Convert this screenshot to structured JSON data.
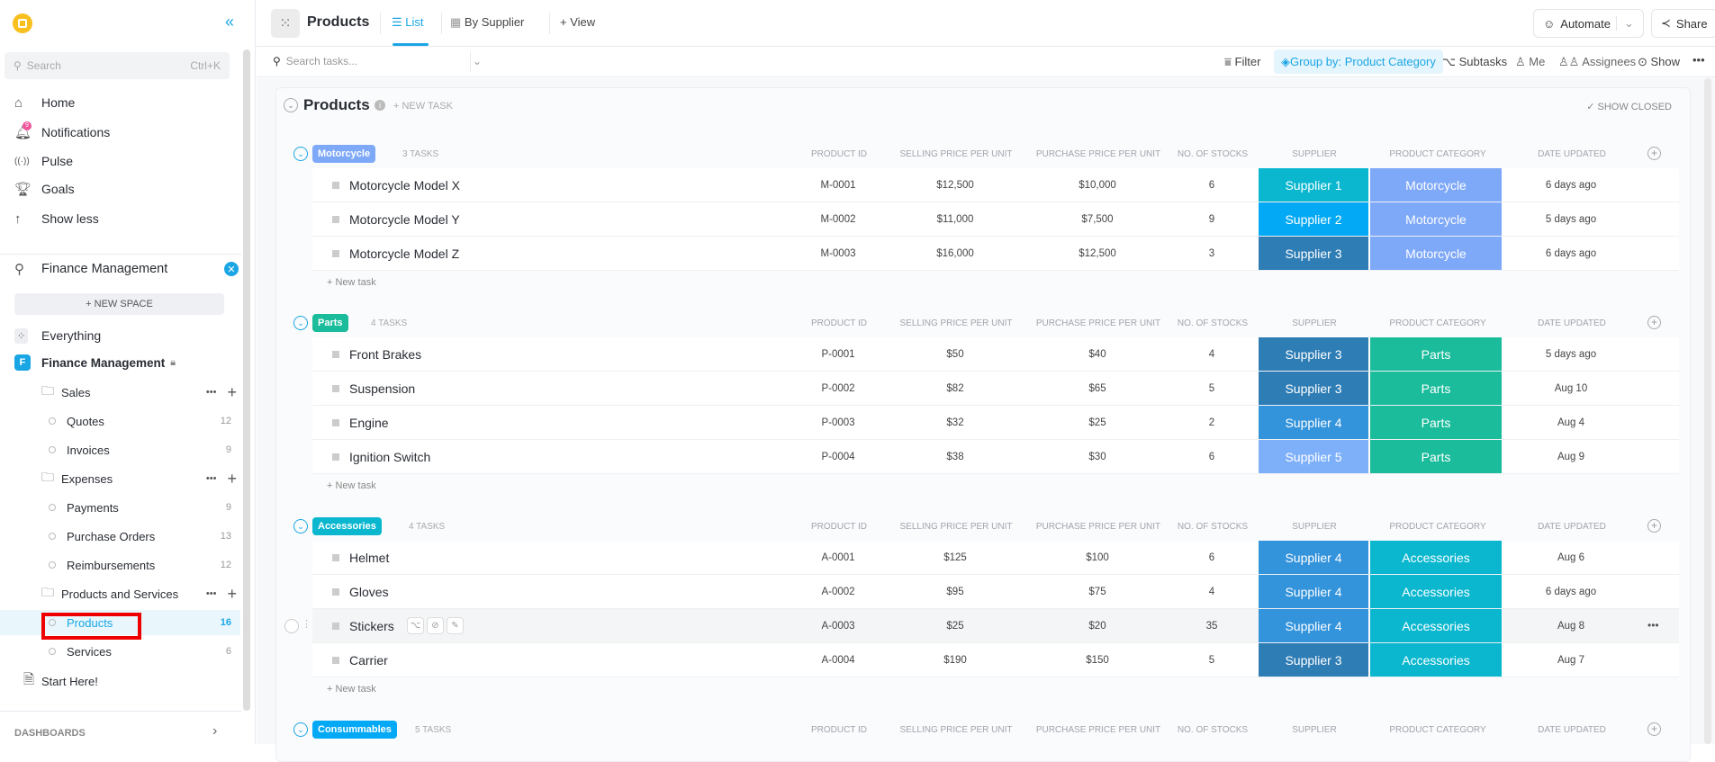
{
  "sidebar": {
    "search_placeholder": "Search",
    "search_shortcut": "Ctrl+K",
    "nav": [
      {
        "label": "Home",
        "icon": "home-icon"
      },
      {
        "label": "Notifications",
        "icon": "bell-icon",
        "badge": "9"
      },
      {
        "label": "Pulse",
        "icon": "pulse-icon"
      },
      {
        "label": "Goals",
        "icon": "trophy-icon"
      },
      {
        "label": "Show less",
        "icon": "arrow-up-icon"
      }
    ],
    "space_filter": "Finance Management",
    "new_space": "+ NEW SPACE",
    "everything": "Everything",
    "space": {
      "initial": "F",
      "name": "Finance Management"
    },
    "folders": [
      {
        "name": "Sales",
        "lists": [
          {
            "name": "Quotes",
            "count": "12"
          },
          {
            "name": "Invoices",
            "count": "9"
          }
        ]
      },
      {
        "name": "Expenses",
        "lists": [
          {
            "name": "Payments",
            "count": "9"
          },
          {
            "name": "Purchase Orders",
            "count": "13"
          },
          {
            "name": "Reimbursements",
            "count": "12"
          }
        ]
      },
      {
        "name": "Products and Services",
        "lists": [
          {
            "name": "Products",
            "count": "16",
            "active": true
          },
          {
            "name": "Services",
            "count": "6"
          }
        ]
      }
    ],
    "start_here": "Start Here!",
    "dashboards": "DASHBOARDS"
  },
  "header": {
    "title": "Products",
    "tabs": [
      {
        "label": "List",
        "active": true
      },
      {
        "label": "By Supplier"
      }
    ],
    "add_view": "+ View",
    "automate": "Automate",
    "share": "Share"
  },
  "toolbar": {
    "search_placeholder": "Search tasks...",
    "filter": "Filter",
    "group_by": "Group by: Product Category",
    "subtasks": "Subtasks",
    "me": "Me",
    "assignees": "Assignees",
    "show": "Show"
  },
  "list": {
    "title": "Products",
    "new_task": "+ NEW TASK",
    "show_closed": "SHOW CLOSED",
    "add_task": "+ New task",
    "columns": [
      "PRODUCT ID",
      "SELLING PRICE PER UNIT",
      "PURCHASE PRICE PER UNIT",
      "NO. OF STOCKS",
      "SUPPLIER",
      "PRODUCT CATEGORY",
      "DATE UPDATED"
    ],
    "supplier_colors": {
      "Supplier 1": "#0ab7cf",
      "Supplier 2": "#03a9f4",
      "Supplier 3": "#2f7db5",
      "Supplier 4": "#3393db",
      "Supplier 5": "#7eb0fa"
    },
    "groups": [
      {
        "name": "Motorcycle",
        "color": "#7ea8f8",
        "count": "3 TASKS",
        "rows": [
          {
            "name": "Motorcycle Model X",
            "id": "M-0001",
            "sell": "$12,500",
            "buy": "$10,000",
            "stock": "6",
            "supplier": "Supplier 1",
            "date": "6 days ago"
          },
          {
            "name": "Motorcycle Model Y",
            "id": "M-0002",
            "sell": "$11,000",
            "buy": "$7,500",
            "stock": "9",
            "supplier": "Supplier 2",
            "date": "5 days ago"
          },
          {
            "name": "Motorcycle Model Z",
            "id": "M-0003",
            "sell": "$16,000",
            "buy": "$12,500",
            "stock": "3",
            "supplier": "Supplier 3",
            "date": "6 days ago"
          }
        ]
      },
      {
        "name": "Parts",
        "color": "#1bbc9b",
        "count": "4 TASKS",
        "rows": [
          {
            "name": "Front Brakes",
            "id": "P-0001",
            "sell": "$50",
            "buy": "$40",
            "stock": "4",
            "supplier": "Supplier 3",
            "date": "5 days ago"
          },
          {
            "name": "Suspension",
            "id": "P-0002",
            "sell": "$82",
            "buy": "$65",
            "stock": "5",
            "supplier": "Supplier 3",
            "date": "Aug 10"
          },
          {
            "name": "Engine",
            "id": "P-0003",
            "sell": "$32",
            "buy": "$25",
            "stock": "2",
            "supplier": "Supplier 4",
            "date": "Aug 4"
          },
          {
            "name": "Ignition Switch",
            "id": "P-0004",
            "sell": "$38",
            "buy": "$30",
            "stock": "6",
            "supplier": "Supplier 5",
            "date": "Aug 9"
          }
        ]
      },
      {
        "name": "Accessories",
        "color": "#0ab7cf",
        "count": "4 TASKS",
        "rows": [
          {
            "name": "Helmet",
            "id": "A-0001",
            "sell": "$125",
            "buy": "$100",
            "stock": "6",
            "supplier": "Supplier 4",
            "date": "Aug 6"
          },
          {
            "name": "Gloves",
            "id": "A-0002",
            "sell": "$95",
            "buy": "$75",
            "stock": "4",
            "supplier": "Supplier 4",
            "date": "6 days ago"
          },
          {
            "name": "Stickers",
            "id": "A-0003",
            "sell": "$25",
            "buy": "$20",
            "stock": "35",
            "supplier": "Supplier 4",
            "date": "Aug 8",
            "hover": true
          },
          {
            "name": "Carrier",
            "id": "A-0004",
            "sell": "$190",
            "buy": "$150",
            "stock": "5",
            "supplier": "Supplier 3",
            "date": "Aug 7"
          }
        ]
      },
      {
        "name": "Consummables",
        "color": "#03a9f4",
        "count": "5 TASKS",
        "rows": []
      }
    ]
  }
}
